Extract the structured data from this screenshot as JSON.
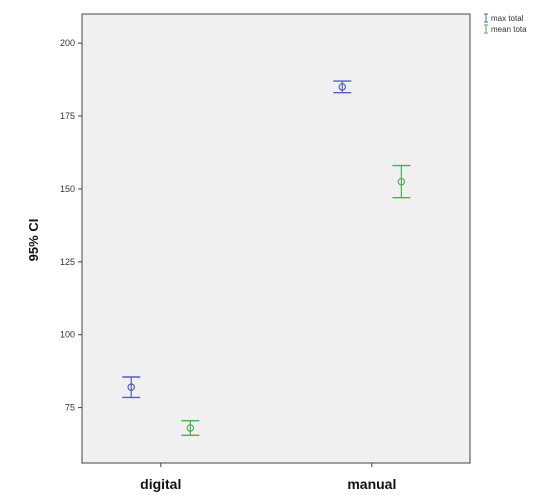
{
  "chart_data": {
    "type": "scatter",
    "subtype": "error-bar",
    "ylabel": "95% CI",
    "xlabel": "",
    "categories": [
      "digital",
      "manual"
    ],
    "ylim": [
      56,
      210
    ],
    "yticks": [
      75,
      100,
      125,
      150,
      175,
      200
    ],
    "ytick_labels": [
      "75",
      "100",
      "125",
      "150",
      "175",
      "200"
    ],
    "grid": false,
    "legend_position": "top-right (outside plot)",
    "series": [
      {
        "name": "max total",
        "color": "#5560b8",
        "points": [
          {
            "category": "digital",
            "mean": 82,
            "lower": 78.5,
            "upper": 85.5
          },
          {
            "category": "manual",
            "mean": 185,
            "lower": 183,
            "upper": 187
          }
        ]
      },
      {
        "name": "mean tota",
        "color": "#4caf50",
        "points": [
          {
            "category": "digital",
            "mean": 68,
            "lower": 65.5,
            "upper": 70.5
          },
          {
            "category": "manual",
            "mean": 152.5,
            "lower": 147,
            "upper": 158
          }
        ]
      }
    ]
  }
}
